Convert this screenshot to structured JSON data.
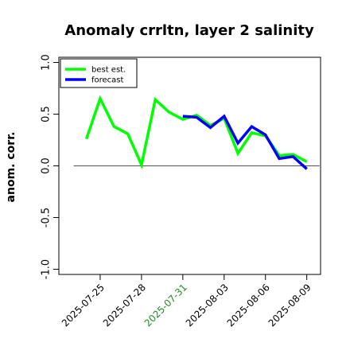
{
  "chart_data": {
    "type": "line",
    "title": "Anomaly crrltn, layer 2 salinity",
    "xlabel": "",
    "ylabel": "anom. corr.",
    "ylim": [
      -1.05,
      1.05
    ],
    "yticks": [
      -1.0,
      -0.5,
      0.0,
      0.5,
      1.0
    ],
    "ytick_labels": [
      "-1.0",
      "-0.5",
      "0.0",
      "0.5",
      "1.0"
    ],
    "x": [
      "2025-07-24",
      "2025-07-25",
      "2025-07-26",
      "2025-07-27",
      "2025-07-28",
      "2025-07-29",
      "2025-07-30",
      "2025-07-31",
      "2025-08-01",
      "2025-08-02",
      "2025-08-03",
      "2025-08-04",
      "2025-08-05",
      "2025-08-06",
      "2025-08-07",
      "2025-08-08",
      "2025-08-09"
    ],
    "xlim": [
      "2025-07-22",
      "2025-08-10"
    ],
    "xticks": [
      "2025-07-25",
      "2025-07-28",
      "2025-07-31",
      "2025-08-03",
      "2025-08-06",
      "2025-08-09"
    ],
    "xtick_colors": [
      "#000000",
      "#000000",
      "#228b22",
      "#000000",
      "#000000",
      "#000000"
    ],
    "hline": 0.0,
    "series": [
      {
        "name": "best est.",
        "color": "#00ff00",
        "x": [
          "2025-07-24",
          "2025-07-25",
          "2025-07-26",
          "2025-07-27",
          "2025-07-28",
          "2025-07-29",
          "2025-07-30",
          "2025-07-31",
          "2025-08-01",
          "2025-08-02",
          "2025-08-03",
          "2025-08-04",
          "2025-08-05",
          "2025-08-06",
          "2025-08-07",
          "2025-08-08",
          "2025-08-09"
        ],
        "values": [
          0.26,
          0.65,
          0.38,
          0.31,
          0.01,
          0.64,
          0.52,
          0.45,
          0.49,
          0.39,
          0.46,
          0.12,
          0.32,
          0.29,
          0.1,
          0.11,
          0.04
        ]
      },
      {
        "name": "forecast",
        "color": "#0000ff",
        "x": [
          "2025-07-31",
          "2025-08-01",
          "2025-08-02",
          "2025-08-03",
          "2025-08-04",
          "2025-08-05",
          "2025-08-06",
          "2025-08-07",
          "2025-08-08",
          "2025-08-09"
        ],
        "values": [
          0.48,
          0.47,
          0.37,
          0.48,
          0.22,
          0.38,
          0.3,
          0.07,
          0.09,
          -0.03
        ]
      }
    ],
    "legend": "top-left",
    "grid": false
  }
}
